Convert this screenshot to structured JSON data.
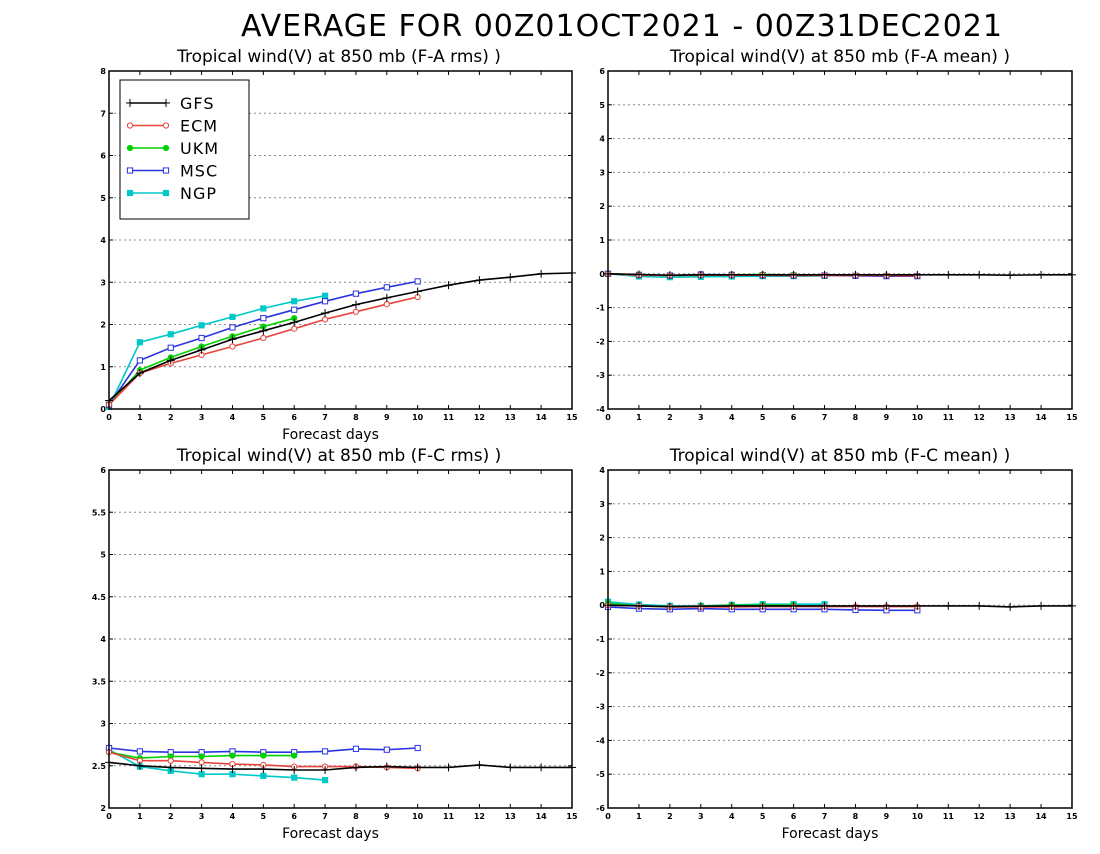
{
  "page": {
    "title": "AVERAGE FOR 00Z01OCT2021 - 00Z31DEC2021"
  },
  "legend": [
    {
      "name": "GFS",
      "color": "#000000",
      "marker": "plus"
    },
    {
      "name": "ECM",
      "color": "#e8443a",
      "marker": "open-circle"
    },
    {
      "name": "UKM",
      "color": "#00d000",
      "marker": "filled-circle"
    },
    {
      "name": "MSC",
      "color": "#2a35e0",
      "marker": "open-square"
    },
    {
      "name": "NGP",
      "color": "#00c8c8",
      "marker": "filled-square"
    }
  ],
  "chart_data": [
    {
      "type": "line",
      "title": "Tropical wind(V) at 850 mb (F-A rms) )",
      "xlabel": "Forecast days",
      "ylabel": "",
      "xlim": [
        0,
        15
      ],
      "ylim": [
        0,
        8
      ],
      "xticks": [
        0,
        1,
        2,
        3,
        4,
        5,
        6,
        7,
        8,
        9,
        10,
        11,
        12,
        13,
        14,
        15
      ],
      "yticks": [
        0,
        1,
        2,
        3,
        4,
        5,
        6,
        7,
        8
      ],
      "ytick_labels": [
        "0",
        "1",
        "2",
        "3",
        "4",
        "5",
        "6",
        "7",
        "8"
      ],
      "grid": "horizontal-dotted",
      "legend_position": "top-left",
      "series": [
        {
          "name": "GFS",
          "x": [
            0,
            1,
            2,
            3,
            4,
            5,
            6,
            7,
            8,
            9,
            10,
            11,
            12,
            13,
            14,
            15
          ],
          "values": [
            0.2,
            0.85,
            1.15,
            1.4,
            1.65,
            1.85,
            2.05,
            2.27,
            2.47,
            2.63,
            2.78,
            2.93,
            3.05,
            3.12,
            3.2,
            3.22
          ]
        },
        {
          "name": "ECM",
          "x": [
            0,
            1,
            2,
            3,
            4,
            5,
            6,
            7,
            8,
            9,
            10
          ],
          "values": [
            0.1,
            0.85,
            1.08,
            1.28,
            1.48,
            1.68,
            1.9,
            2.12,
            2.3,
            2.48,
            2.65
          ]
        },
        {
          "name": "UKM",
          "x": [
            0,
            1,
            2,
            3,
            4,
            5,
            6
          ],
          "values": [
            0.1,
            0.92,
            1.22,
            1.48,
            1.72,
            1.95,
            2.15
          ]
        },
        {
          "name": "MSC",
          "x": [
            0,
            1,
            2,
            3,
            4,
            5,
            6,
            7,
            8,
            9,
            10
          ],
          "values": [
            0.1,
            1.15,
            1.45,
            1.68,
            1.93,
            2.15,
            2.35,
            2.55,
            2.73,
            2.88,
            3.02
          ]
        },
        {
          "name": "NGP",
          "x": [
            0,
            1,
            2,
            3,
            4,
            5,
            6,
            7
          ],
          "values": [
            0.05,
            1.58,
            1.77,
            1.98,
            2.18,
            2.38,
            2.55,
            2.68
          ]
        }
      ]
    },
    {
      "type": "line",
      "title": "Tropical wind(V) at 850 mb (F-A mean) )",
      "xlabel": "",
      "ylabel": "",
      "xlim": [
        0,
        15
      ],
      "ylim": [
        -4,
        6
      ],
      "xticks": [
        0,
        1,
        2,
        3,
        4,
        5,
        6,
        7,
        8,
        9,
        10,
        11,
        12,
        13,
        14,
        15
      ],
      "yticks": [
        -4,
        -3,
        -2,
        -1,
        0,
        1,
        2,
        3,
        4,
        5,
        6
      ],
      "ytick_labels": [
        "-4",
        "-3",
        "-2",
        "-1",
        "0",
        "1",
        "2",
        "3",
        "4",
        "5",
        "6"
      ],
      "grid": "horizontal-dotted",
      "series": [
        {
          "name": "GFS",
          "x": [
            0,
            1,
            2,
            3,
            4,
            5,
            6,
            7,
            8,
            9,
            10,
            11,
            12,
            13,
            14,
            15
          ],
          "values": [
            0.0,
            -0.02,
            -0.04,
            -0.03,
            -0.03,
            -0.03,
            -0.03,
            -0.03,
            -0.03,
            -0.03,
            -0.03,
            -0.03,
            -0.03,
            -0.04,
            -0.03,
            -0.03
          ]
        },
        {
          "name": "ECM",
          "x": [
            0,
            1,
            2,
            3,
            4,
            5,
            6,
            7,
            8,
            9,
            10
          ],
          "values": [
            0.0,
            -0.04,
            -0.05,
            -0.04,
            -0.04,
            -0.04,
            -0.05,
            -0.05,
            -0.05,
            -0.05,
            -0.06
          ]
        },
        {
          "name": "UKM",
          "x": [
            0,
            1,
            2,
            3,
            4,
            5,
            6
          ],
          "values": [
            0.0,
            -0.03,
            -0.05,
            -0.04,
            -0.03,
            -0.02,
            -0.03
          ]
        },
        {
          "name": "MSC",
          "x": [
            0,
            1,
            2,
            3,
            4,
            5,
            6,
            7,
            8,
            9,
            10
          ],
          "values": [
            0.0,
            -0.03,
            -0.05,
            -0.02,
            -0.03,
            -0.04,
            -0.05,
            -0.05,
            -0.06,
            -0.07,
            -0.07
          ]
        },
        {
          "name": "NGP",
          "x": [
            0,
            1,
            2,
            3,
            4,
            5,
            6,
            7
          ],
          "values": [
            0.0,
            -0.08,
            -0.1,
            -0.09,
            -0.08,
            -0.07,
            -0.07,
            -0.06
          ]
        }
      ]
    },
    {
      "type": "line",
      "title": "Tropical wind(V) at 850 mb (F-C rms) )",
      "xlabel": "Forecast days",
      "ylabel": "",
      "xlim": [
        0,
        15
      ],
      "ylim": [
        2,
        6
      ],
      "xticks": [
        0,
        1,
        2,
        3,
        4,
        5,
        6,
        7,
        8,
        9,
        10,
        11,
        12,
        13,
        14,
        15
      ],
      "yticks": [
        2,
        2.5,
        3,
        3.5,
        4,
        4.5,
        5,
        5.5,
        6
      ],
      "ytick_labels": [
        "2",
        "2.5",
        "3",
        "3.5",
        "4",
        "4.5",
        "5",
        "5.5",
        "6"
      ],
      "grid": "horizontal-dotted",
      "series": [
        {
          "name": "GFS",
          "x": [
            0,
            1,
            2,
            3,
            4,
            5,
            6,
            7,
            8,
            9,
            10,
            11,
            12,
            13,
            14,
            15
          ],
          "values": [
            2.54,
            2.5,
            2.48,
            2.47,
            2.46,
            2.46,
            2.45,
            2.45,
            2.48,
            2.49,
            2.48,
            2.48,
            2.51,
            2.48,
            2.48,
            2.48
          ]
        },
        {
          "name": "ECM",
          "x": [
            0,
            1,
            2,
            3,
            4,
            5,
            6,
            7,
            8,
            9,
            10
          ],
          "values": [
            2.66,
            2.56,
            2.56,
            2.54,
            2.52,
            2.51,
            2.49,
            2.49,
            2.49,
            2.48,
            2.47
          ]
        },
        {
          "name": "UKM",
          "x": [
            0,
            1,
            2,
            3,
            4,
            5,
            6
          ],
          "values": [
            2.66,
            2.59,
            2.61,
            2.61,
            2.62,
            2.62,
            2.62
          ]
        },
        {
          "name": "MSC",
          "x": [
            0,
            1,
            2,
            3,
            4,
            5,
            6,
            7,
            8,
            9,
            10
          ],
          "values": [
            2.71,
            2.67,
            2.66,
            2.66,
            2.67,
            2.66,
            2.66,
            2.67,
            2.7,
            2.69,
            2.71
          ]
        },
        {
          "name": "NGP",
          "x": [
            0,
            1,
            2,
            3,
            4,
            5,
            6,
            7
          ],
          "values": [
            2.69,
            2.49,
            2.44,
            2.4,
            2.4,
            2.38,
            2.36,
            2.33
          ]
        }
      ]
    },
    {
      "type": "line",
      "title": "Tropical wind(V) at 850 mb (F-C mean) )",
      "xlabel": "Forecast days",
      "ylabel": "",
      "xlim": [
        0,
        15
      ],
      "ylim": [
        -6,
        4
      ],
      "xticks": [
        0,
        1,
        2,
        3,
        4,
        5,
        6,
        7,
        8,
        9,
        10,
        11,
        12,
        13,
        14,
        15
      ],
      "yticks": [
        -6,
        -5,
        -4,
        -3,
        -2,
        -1,
        0,
        1,
        2,
        3,
        4
      ],
      "ytick_labels": [
        "-6",
        "-5",
        "-4",
        "-3",
        "-2",
        "-1",
        "0",
        "1",
        "2",
        "3",
        "4"
      ],
      "grid": "horizontal-dotted",
      "series": [
        {
          "name": "GFS",
          "x": [
            0,
            1,
            2,
            3,
            4,
            5,
            6,
            7,
            8,
            9,
            10,
            11,
            12,
            13,
            14,
            15
          ],
          "values": [
            0.0,
            -0.02,
            -0.04,
            -0.03,
            -0.02,
            -0.02,
            -0.02,
            -0.02,
            -0.02,
            -0.02,
            -0.02,
            -0.02,
            -0.02,
            -0.05,
            -0.02,
            -0.02
          ]
        },
        {
          "name": "ECM",
          "x": [
            0,
            1,
            2,
            3,
            4,
            5,
            6,
            7,
            8,
            9,
            10
          ],
          "values": [
            0.0,
            -0.02,
            -0.05,
            -0.05,
            -0.05,
            -0.04,
            -0.04,
            -0.04,
            -0.04,
            -0.04,
            -0.04
          ]
        },
        {
          "name": "UKM",
          "x": [
            0,
            1,
            2,
            3,
            4,
            5,
            6
          ],
          "values": [
            0.05,
            -0.02,
            -0.05,
            -0.03,
            0.0,
            0.0,
            0.0
          ]
        },
        {
          "name": "MSC",
          "x": [
            0,
            1,
            2,
            3,
            4,
            5,
            6,
            7,
            8,
            9,
            10
          ],
          "values": [
            -0.05,
            -0.1,
            -0.12,
            -0.1,
            -0.12,
            -0.12,
            -0.12,
            -0.12,
            -0.14,
            -0.15,
            -0.15
          ]
        },
        {
          "name": "NGP",
          "x": [
            0,
            1,
            2,
            3,
            4,
            5,
            6,
            7
          ],
          "values": [
            0.1,
            0.02,
            -0.02,
            -0.02,
            0.01,
            0.03,
            0.03,
            0.03
          ]
        }
      ]
    }
  ]
}
